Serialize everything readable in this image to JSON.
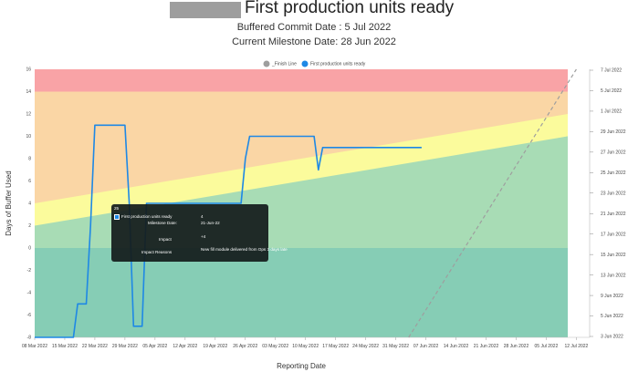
{
  "header": {
    "title": "First production units ready",
    "buffered_commit": "Buffered Commit Date : 5 Jul 2022",
    "current_milestone": "Current Milestone Date: 28 Jun 2022"
  },
  "legend": [
    {
      "label": "_Finish Line",
      "color": "#9e9e9e"
    },
    {
      "label": "First production units ready",
      "color": "#1e88e5"
    }
  ],
  "tooltip": {
    "header": "25",
    "series_label": "First production units ready",
    "series_value": "4",
    "milestone_label": "Milestone Date:",
    "milestone_value": "21-Jun-22",
    "impact_label": "Impact",
    "impact_value": "+4",
    "reasons_label": "Impact Reasons",
    "reasons_value": "New fill module delivered from Ops 3 days late"
  },
  "colors": {
    "red_zone": "#f9a3a6",
    "orange_zone": "#fad6a5",
    "yellow_zone": "#fbfb9c",
    "green_zone": "#a8dcb5",
    "teal_zone": "#86cdb5",
    "series": "#1e88e5",
    "finish_line": "#9e9e9e"
  },
  "chart_data": {
    "type": "line",
    "xlabel": "Reporting Date",
    "ylabel": "Days of Buffer Used",
    "x_ticks": [
      "08 Mar 2022",
      "15 Mar 2022",
      "22 Mar 2022",
      "29 Mar 2022",
      "05 Apr 2022",
      "12 Apr 2022",
      "19 Apr 2022",
      "26 Apr 2022",
      "03 May 2022",
      "10 May 2022",
      "17 May 2022",
      "24 May 2022",
      "31 May 2022",
      "07 Jun 2022",
      "14 Jun 2022",
      "21 Jun 2022",
      "28 Jun 2022",
      "05 Jul 2022",
      "12 Jul 2022"
    ],
    "y_ticks": [
      "-8",
      "-6",
      "-4",
      "-2",
      "0",
      "2",
      "4",
      "6",
      "8",
      "10",
      "12",
      "14",
      "16"
    ],
    "ylim": [
      -8,
      16
    ],
    "right_ticks": [
      "3 Jun 2022",
      "5 Jun 2022",
      "9 Jun 2022",
      "13 Jun 2022",
      "15 Jun 2022",
      "17 Jun 2022",
      "21 Jun 2022",
      "23 Jun 2022",
      "25 Jun 2022",
      "27 Jun 2022",
      "29 Jun 2022",
      "1 Jul 2022",
      "5 Jul 2022",
      "7 Jul 2022"
    ],
    "zone_boundaries": {
      "green_top": {
        "start": 0,
        "end": 10
      },
      "yellow_top": {
        "start": 2,
        "end": 10
      },
      "orange_lower_top": {
        "start": 4,
        "end": 12
      }
    },
    "series": [
      {
        "name": "First production units ready",
        "x": [
          "08 Mar 2022",
          "15 Mar 2022",
          "17 Mar 2022",
          "18 Mar 2022",
          "19 Mar 2022",
          "20 Mar 2022",
          "21 Mar 2022",
          "22 Mar 2022",
          "29 Mar 2022",
          "30 Mar 2022",
          "31 Mar 2022",
          "01 Apr 2022",
          "02 Apr 2022",
          "03 Apr 2022",
          "04 Apr 2022",
          "12 Apr 2022",
          "13 Apr 2022",
          "25 Apr 2022",
          "26 Apr 2022",
          "27 Apr 2022",
          "04 May 2022",
          "05 May 2022",
          "12 May 2022",
          "13 May 2022",
          "14 May 2022",
          "16 May 2022",
          "06 Jun 2022"
        ],
        "values": [
          -8,
          -8,
          -8,
          -5,
          -5,
          -5,
          2,
          11,
          11,
          4,
          -7,
          -7,
          -7,
          4,
          4,
          4,
          4,
          4,
          8,
          10,
          10,
          10,
          10,
          7,
          9,
          9,
          9
        ]
      },
      {
        "name": "_Finish Line",
        "x": [
          "03 Jun 2022",
          "12 Jul 2022"
        ],
        "values": [
          -8,
          16
        ]
      }
    ]
  }
}
